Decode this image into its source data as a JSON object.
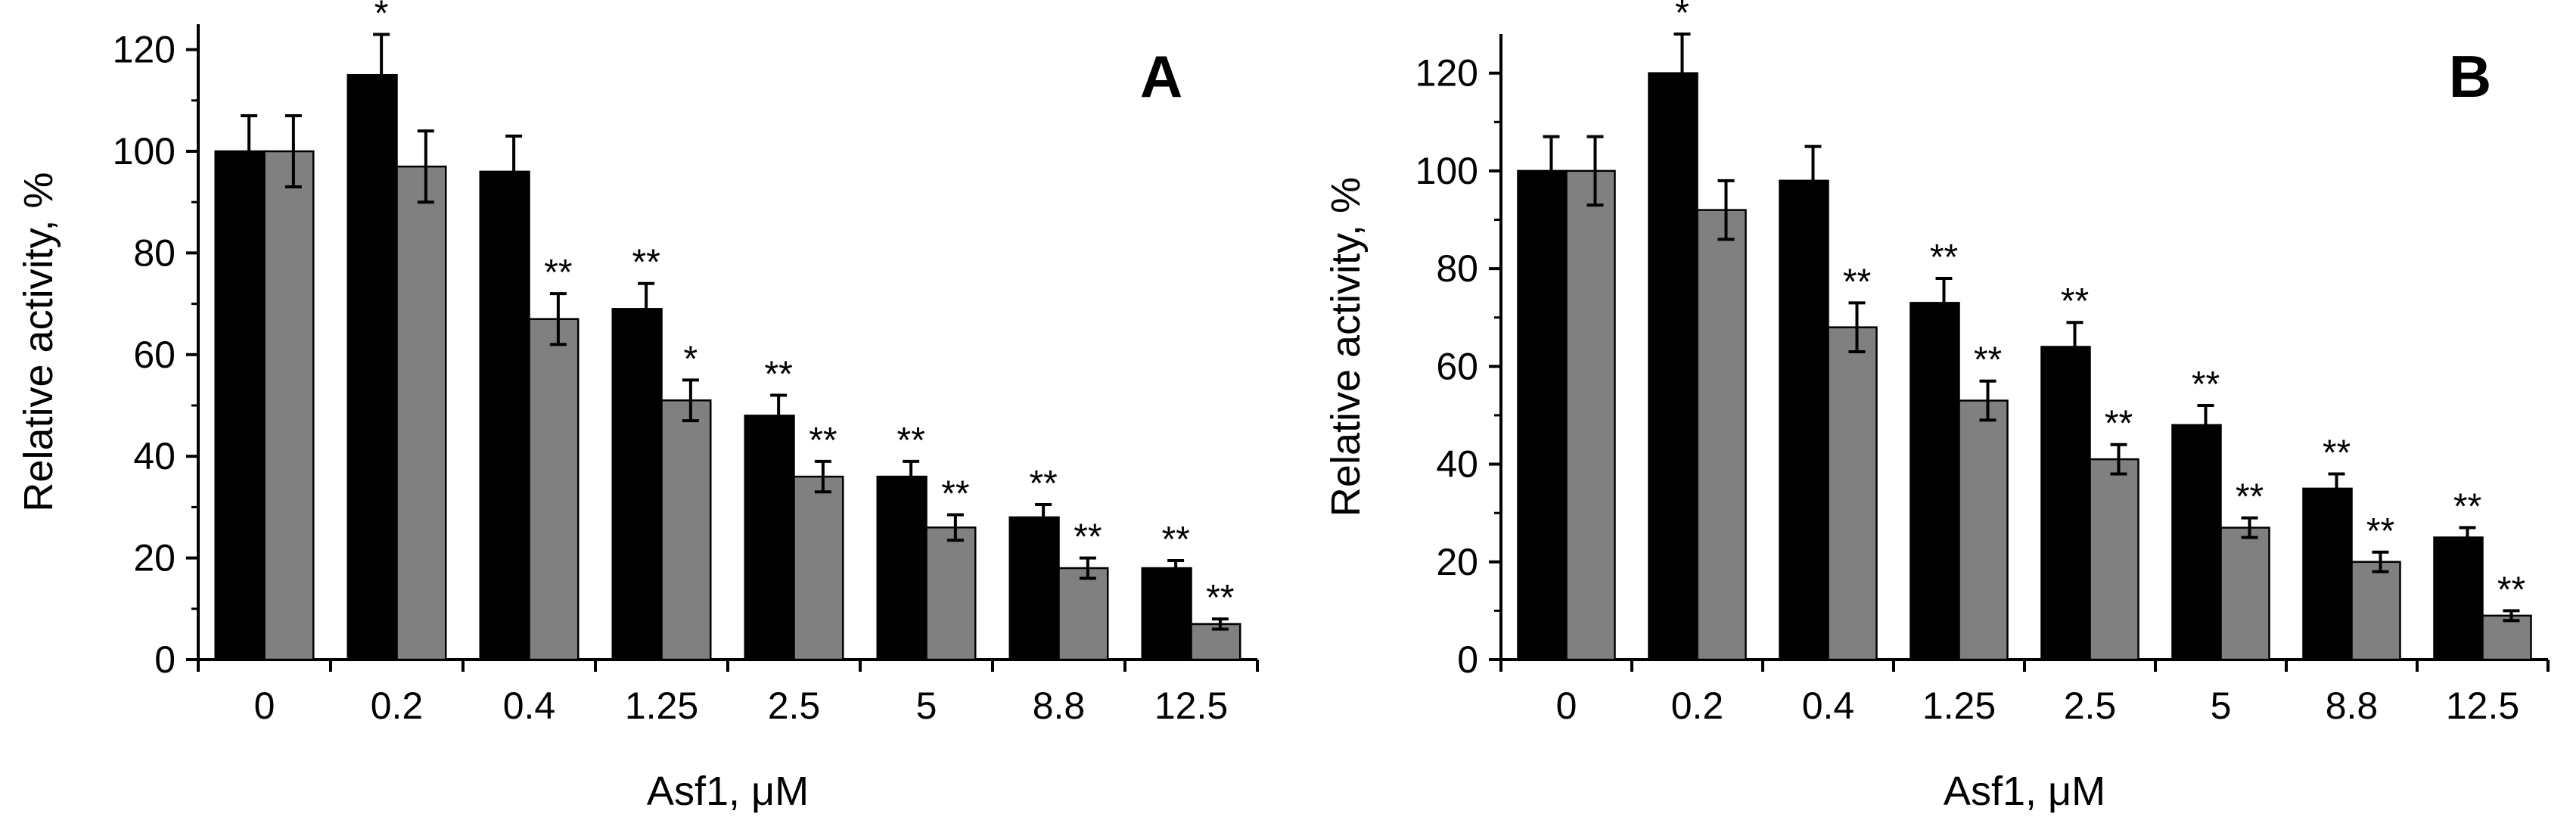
{
  "chart_data": [
    {
      "type": "bar",
      "panel_label": "A",
      "title": "",
      "xlabel": "Asf1, μM",
      "ylabel": "Relative activity, %",
      "ylim": [
        0,
        125
      ],
      "yticks": [
        0,
        20,
        40,
        60,
        80,
        100,
        120
      ],
      "ytick_labels": [
        "0",
        "20",
        "40",
        "60",
        "80",
        "100",
        "120"
      ],
      "categories": [
        "0",
        "0.2",
        "0.4",
        "1.25",
        "2.5",
        "5",
        "8.8",
        "12.5"
      ],
      "series": [
        {
          "name": "black",
          "color": "#000000",
          "values": [
            100,
            115,
            96,
            69,
            48,
            36,
            28,
            18
          ],
          "errors": [
            7,
            8,
            7,
            5,
            4,
            3,
            2.5,
            1.5
          ],
          "significance": [
            "",
            "*",
            "",
            "**",
            "**",
            "**",
            "**",
            "**"
          ]
        },
        {
          "name": "gray",
          "color": "#808080",
          "values": [
            100,
            97,
            67,
            51,
            36,
            26,
            18,
            7
          ],
          "errors": [
            7,
            7,
            5,
            4,
            3,
            2.5,
            2,
            1
          ],
          "significance": [
            "",
            "",
            "**",
            "*",
            "**",
            "**",
            "**",
            "**"
          ]
        }
      ]
    },
    {
      "type": "bar",
      "panel_label": "B",
      "title": "",
      "xlabel": "Asf1, μM",
      "ylabel": "Relative activity, %",
      "ylim": [
        0,
        128
      ],
      "yticks": [
        0,
        20,
        40,
        60,
        80,
        100,
        120
      ],
      "ytick_labels": [
        "0",
        "20",
        "40",
        "60",
        "80",
        "100",
        "120"
      ],
      "categories": [
        "0",
        "0.2",
        "0.4",
        "1.25",
        "2.5",
        "5",
        "8.8",
        "12.5"
      ],
      "series": [
        {
          "name": "black",
          "color": "#000000",
          "values": [
            100,
            120,
            98,
            73,
            64,
            48,
            35,
            25
          ],
          "errors": [
            7,
            8,
            7,
            5,
            5,
            4,
            3,
            2
          ],
          "significance": [
            "",
            "*",
            "",
            "**",
            "**",
            "**",
            "**",
            "**"
          ]
        },
        {
          "name": "gray",
          "color": "#808080",
          "values": [
            100,
            92,
            68,
            53,
            41,
            27,
            20,
            9
          ],
          "errors": [
            7,
            6,
            5,
            4,
            3,
            2,
            2,
            1
          ],
          "significance": [
            "",
            "",
            "**",
            "**",
            "**",
            "**",
            "**",
            "**"
          ]
        }
      ]
    }
  ]
}
